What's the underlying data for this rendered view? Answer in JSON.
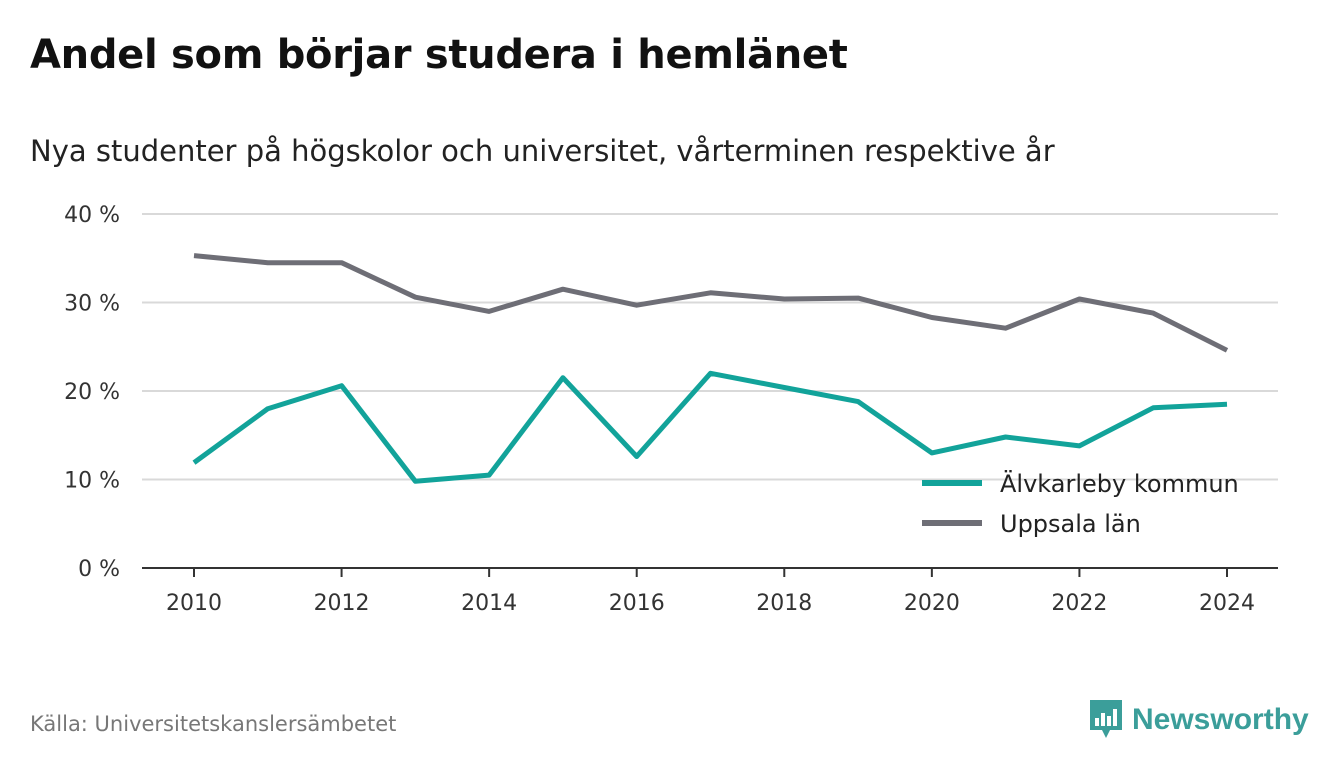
{
  "title": "Andel som börjar studera i hemlänet",
  "subtitle": "Nya studenter på högskolor och universitet, vårterminen respektive år",
  "source": "Källa: Universitetskanslersämbetet",
  "brand": {
    "name": "Newsworthy",
    "icon": "newsworthy-logo-icon",
    "color": "#3b9e9a"
  },
  "chart_data": {
    "type": "line",
    "x": [
      2010,
      2011,
      2012,
      2013,
      2014,
      2015,
      2016,
      2017,
      2018,
      2019,
      2020,
      2021,
      2022,
      2023,
      2024
    ],
    "x_ticks": [
      "2010",
      "2012",
      "2014",
      "2016",
      "2018",
      "2020",
      "2022",
      "2024"
    ],
    "y_ticks": [
      "0 %",
      "10 %",
      "20 %",
      "30 %",
      "40 %"
    ],
    "ylim": [
      0,
      40
    ],
    "grid": true,
    "legend_position": "bottom-right",
    "series": [
      {
        "name": "Älvkarleby kommun",
        "color": "#12a39a",
        "values": [
          11.9,
          18.0,
          20.6,
          9.8,
          10.5,
          21.5,
          12.6,
          22.0,
          20.4,
          18.8,
          13.0,
          14.8,
          13.8,
          18.1,
          18.5
        ]
      },
      {
        "name": "Uppsala län",
        "color": "#6e6e76",
        "values": [
          35.3,
          34.5,
          34.5,
          30.6,
          29.0,
          31.5,
          29.7,
          31.1,
          30.4,
          30.5,
          28.3,
          27.1,
          30.4,
          28.8,
          24.6
        ]
      }
    ]
  }
}
